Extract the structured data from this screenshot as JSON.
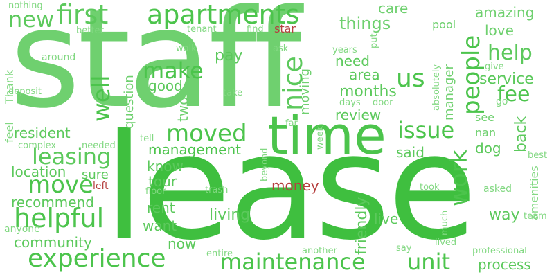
{
  "words": [
    {
      "text": "staff",
      "color": "#5fcc5f"
    },
    {
      "text": "lease",
      "color": "#3fbf3f"
    },
    {
      "text": "time",
      "color": "#4cc44c"
    },
    {
      "text": "apartments",
      "color": "#4cc44c"
    },
    {
      "text": "first",
      "color": "#5cc95c"
    },
    {
      "text": "new",
      "color": "#5cc95c"
    },
    {
      "text": "experience",
      "color": "#4cc44c"
    },
    {
      "text": "maintenance",
      "color": "#4cc44c"
    },
    {
      "text": "unit",
      "color": "#4cc44c"
    },
    {
      "text": "helpful",
      "color": "#4cc44c"
    },
    {
      "text": "move",
      "color": "#4cc44c"
    },
    {
      "text": "leasing",
      "color": "#5cc95c"
    },
    {
      "text": "moved",
      "color": "#4cc44c"
    },
    {
      "text": "issue",
      "color": "#4cc44c"
    },
    {
      "text": "nice",
      "color": "#5cc95c"
    },
    {
      "text": "make",
      "color": "#4cc44c"
    },
    {
      "text": "us",
      "color": "#4cc44c"
    },
    {
      "text": "help",
      "color": "#5cc95c"
    },
    {
      "text": "fee",
      "color": "#4cc44c"
    },
    {
      "text": "people",
      "color": "#4cc44c"
    },
    {
      "text": "well",
      "color": "#4cc44c"
    },
    {
      "text": "work",
      "color": "#4cc44c"
    },
    {
      "text": "things",
      "color": "#6fd06f"
    },
    {
      "text": "care",
      "color": "#6fd06f"
    },
    {
      "text": "amazing",
      "color": "#6fd06f"
    },
    {
      "text": "love",
      "color": "#6fd06f"
    },
    {
      "text": "pool",
      "color": "#6fd06f"
    },
    {
      "text": "service",
      "color": "#5cc95c"
    },
    {
      "text": "months",
      "color": "#5cc95c"
    },
    {
      "text": "area",
      "color": "#5cc95c"
    },
    {
      "text": "need",
      "color": "#5cc95c"
    },
    {
      "text": "review",
      "color": "#5cc95c"
    },
    {
      "text": "pay",
      "color": "#5cc95c"
    },
    {
      "text": "good",
      "color": "#5cc95c"
    },
    {
      "text": "management",
      "color": "#4cc44c"
    },
    {
      "text": "resident",
      "color": "#5cc95c"
    },
    {
      "text": "location",
      "color": "#5cc95c"
    },
    {
      "text": "recommend",
      "color": "#5cc95c"
    },
    {
      "text": "community",
      "color": "#5cc95c"
    },
    {
      "text": "process",
      "color": "#5cc95c"
    },
    {
      "text": "living",
      "color": "#5cc95c"
    },
    {
      "text": "rent",
      "color": "#5cc95c"
    },
    {
      "text": "want",
      "color": "#5cc95c"
    },
    {
      "text": "now",
      "color": "#5cc95c"
    },
    {
      "text": "know",
      "color": "#5cc95c"
    },
    {
      "text": "tour",
      "color": "#5cc95c"
    },
    {
      "text": "sure",
      "color": "#5cc95c"
    },
    {
      "text": "said",
      "color": "#5cc95c"
    },
    {
      "text": "live",
      "color": "#5cc95c"
    },
    {
      "text": "way",
      "color": "#5cc95c"
    },
    {
      "text": "dog",
      "color": "#5cc95c"
    },
    {
      "text": "see",
      "color": "#6fd06f"
    },
    {
      "text": "nan",
      "color": "#6fd06f"
    },
    {
      "text": "back",
      "color": "#5cc95c"
    },
    {
      "text": "friendly",
      "color": "#5cc95c"
    },
    {
      "text": "moving",
      "color": "#6fd06f"
    },
    {
      "text": "manager",
      "color": "#6fd06f"
    },
    {
      "text": "question",
      "color": "#6fd06f"
    },
    {
      "text": "two",
      "color": "#6fd06f"
    },
    {
      "text": "money",
      "color": "#b5403f"
    },
    {
      "text": "star",
      "color": "#b5403f"
    },
    {
      "text": "left",
      "color": "#b5403f"
    },
    {
      "text": "nothing",
      "color": "#82d882"
    },
    {
      "text": "better",
      "color": "#82d882"
    },
    {
      "text": "tenant",
      "color": "#82d882"
    },
    {
      "text": "find",
      "color": "#82d882"
    },
    {
      "text": "around",
      "color": "#82d882"
    },
    {
      "text": "walk",
      "color": "#82d882"
    },
    {
      "text": "ask",
      "color": "#82d882"
    },
    {
      "text": "years",
      "color": "#82d882"
    },
    {
      "text": "put",
      "color": "#82d882"
    },
    {
      "text": "give",
      "color": "#82d882"
    },
    {
      "text": "go",
      "color": "#82d882"
    },
    {
      "text": "Thank",
      "color": "#82d882"
    },
    {
      "text": "deposit",
      "color": "#82d882"
    },
    {
      "text": "take",
      "color": "#82d882"
    },
    {
      "text": "days",
      "color": "#82d882"
    },
    {
      "text": "door",
      "color": "#82d882"
    },
    {
      "text": "absolutely",
      "color": "#82d882"
    },
    {
      "text": "feel",
      "color": "#82d882"
    },
    {
      "text": "complex",
      "color": "#82d882"
    },
    {
      "text": "needed",
      "color": "#82d882"
    },
    {
      "text": "tell",
      "color": "#82d882"
    },
    {
      "text": "far",
      "color": "#82d882"
    },
    {
      "text": "week",
      "color": "#82d882"
    },
    {
      "text": "beyond",
      "color": "#82d882"
    },
    {
      "text": "best",
      "color": "#82d882"
    },
    {
      "text": "amenities",
      "color": "#82d882"
    },
    {
      "text": "floor",
      "color": "#82d882"
    },
    {
      "text": "trash",
      "color": "#82d882"
    },
    {
      "text": "took",
      "color": "#82d882"
    },
    {
      "text": "asked",
      "color": "#82d882"
    },
    {
      "text": "team",
      "color": "#82d882"
    },
    {
      "text": "much",
      "color": "#82d882"
    },
    {
      "text": "anyone",
      "color": "#82d882"
    },
    {
      "text": "another",
      "color": "#82d882"
    },
    {
      "text": "say",
      "color": "#82d882"
    },
    {
      "text": "lived",
      "color": "#82d882"
    },
    {
      "text": "professional",
      "color": "#82d882"
    },
    {
      "text": "entire",
      "color": "#82d882"
    }
  ]
}
